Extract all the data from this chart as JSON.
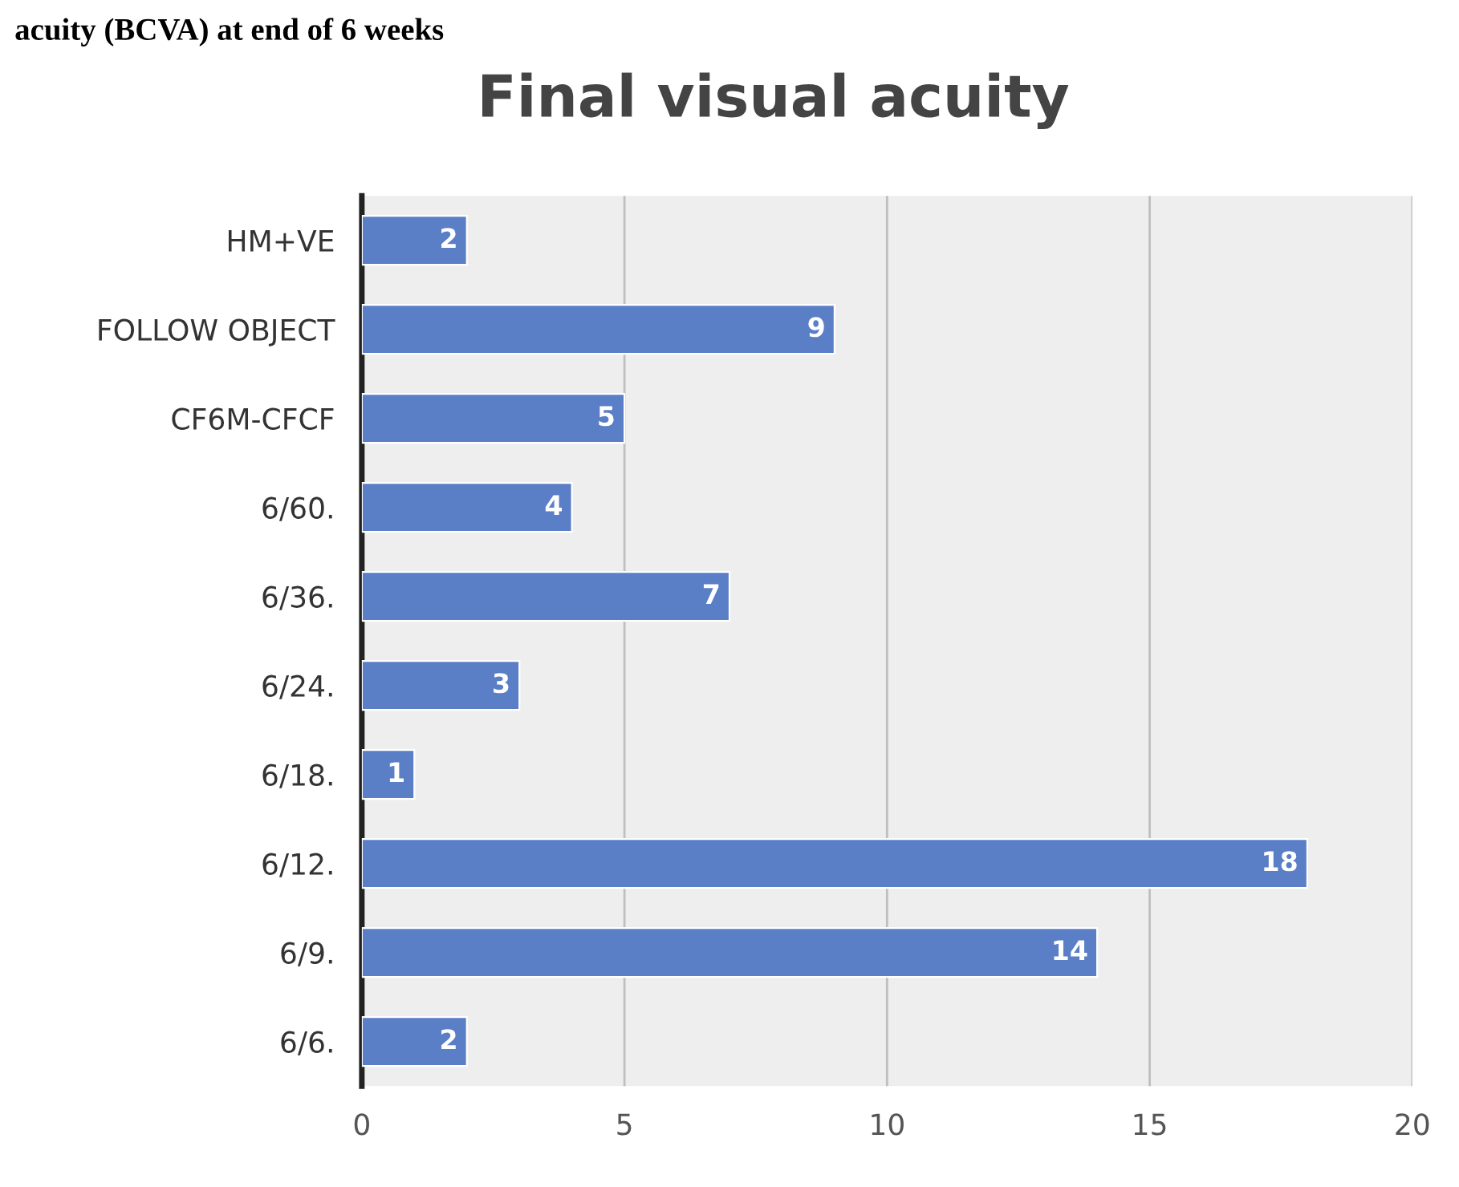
{
  "chart_data": {
    "type": "bar",
    "orientation": "horizontal",
    "title": "Final visual acuity",
    "annotations": [
      "acuity (BCVA) at end of 6 weeks"
    ],
    "categories": [
      "HM+VE",
      "FOLLOW OBJECT",
      "CF6M-CFCF",
      "6/60.",
      "6/36.",
      "6/24.",
      "6/18.",
      "6/12.",
      "6/9.",
      "6/6."
    ],
    "values": [
      2,
      9,
      5,
      4,
      7,
      3,
      1,
      18,
      14,
      2
    ],
    "color": "#5b7fc7",
    "xlim": [
      0,
      20
    ],
    "xticks": [
      0,
      5,
      10,
      15,
      20
    ],
    "grid": "x",
    "data_labels": true
  }
}
